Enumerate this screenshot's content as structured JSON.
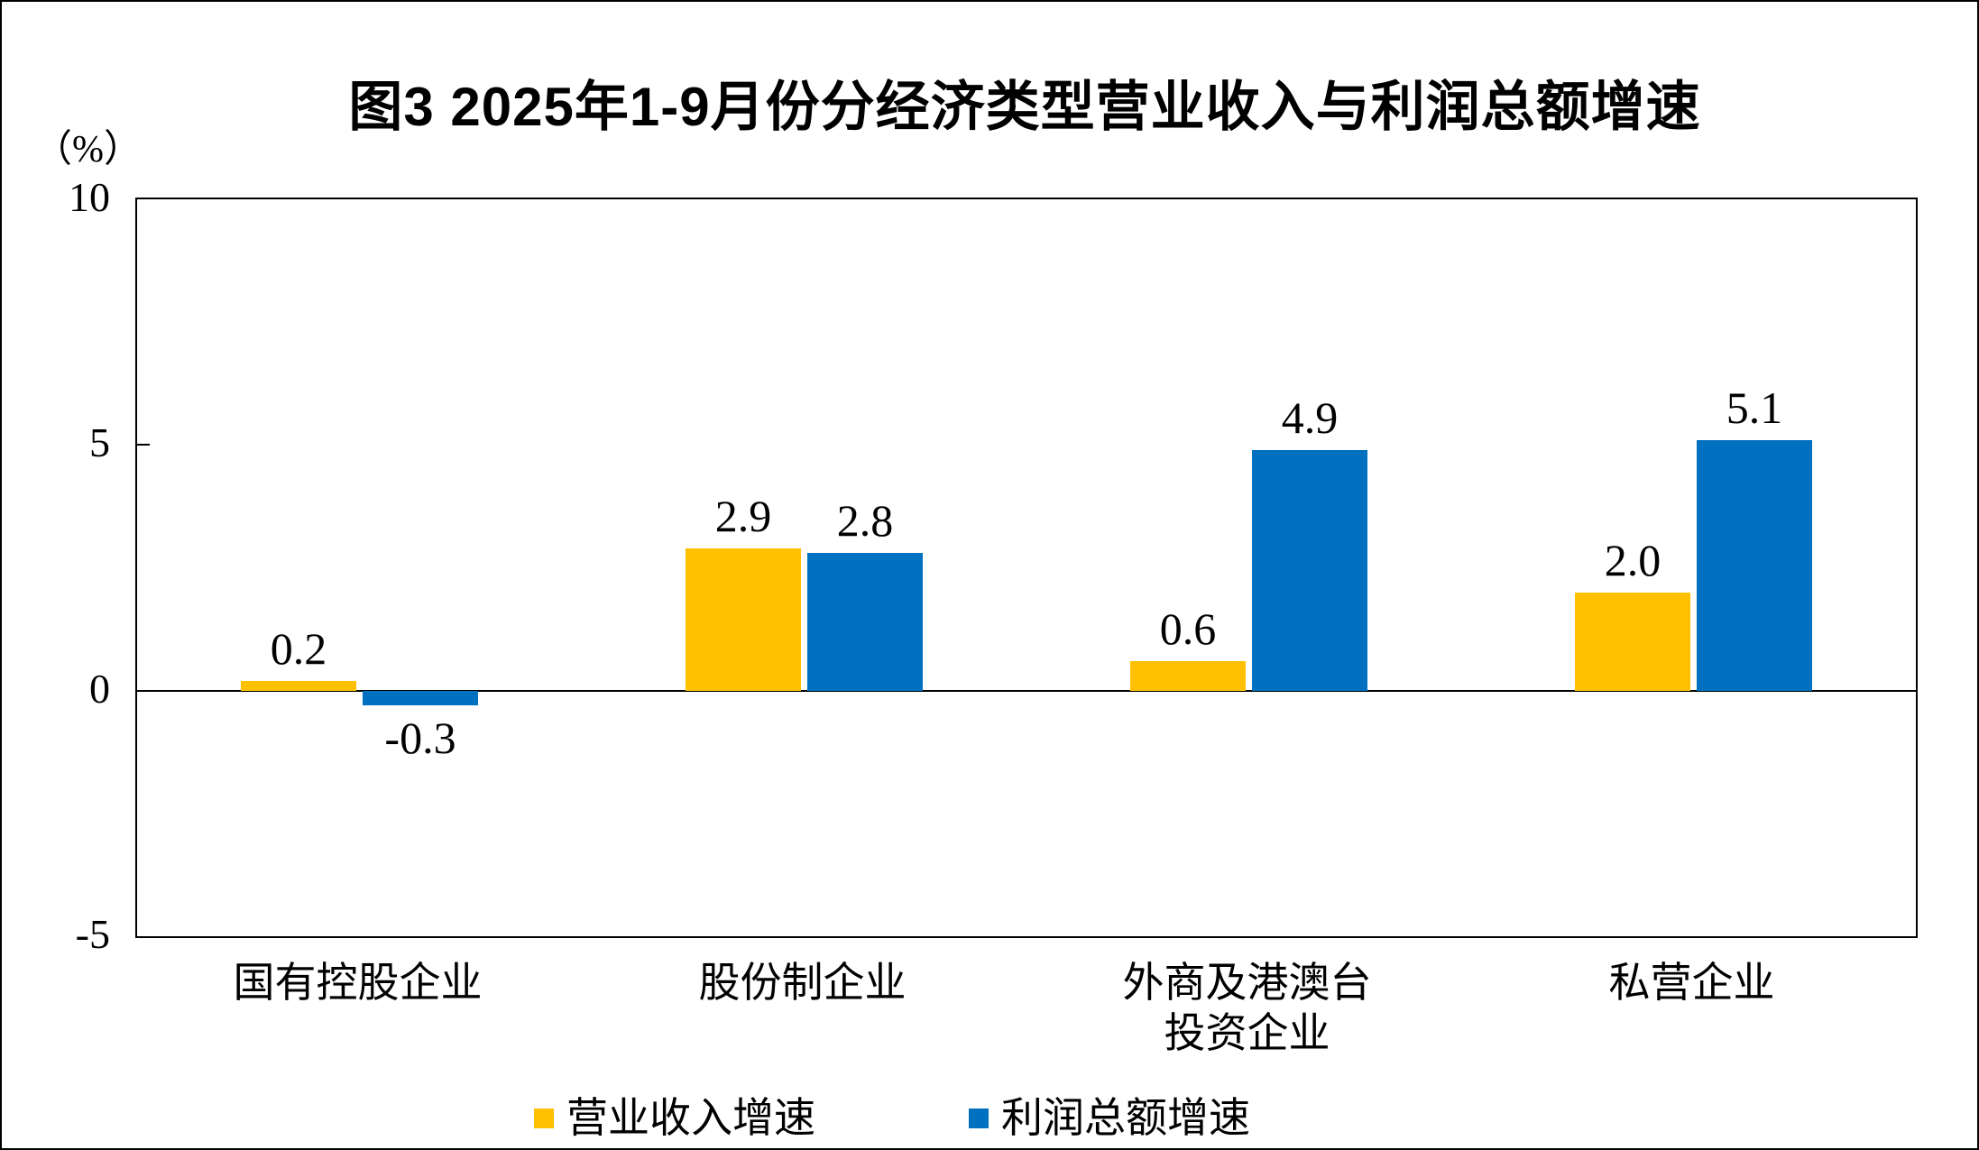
{
  "chart_data": {
    "type": "bar",
    "title": "图3  2025年1-9月份分经济类型营业收入与利润总额增速",
    "unit_label": "（%）",
    "categories": [
      "国有控股企业",
      "股份制企业",
      "外商及港澳台投资企业",
      "私营企业"
    ],
    "categories_lines": [
      [
        "国有控股企业"
      ],
      [
        "股份制企业"
      ],
      [
        "外商及港澳台",
        "投资企业"
      ],
      [
        "私营企业"
      ]
    ],
    "series": [
      {
        "name": "营业收入增速",
        "color": "#FFC000",
        "values": [
          0.2,
          2.9,
          0.6,
          2.0
        ],
        "labels": [
          "0.2",
          "2.9",
          "0.6",
          "2.0"
        ]
      },
      {
        "name": "利润总额增速",
        "color": "#0070C0",
        "values": [
          -0.3,
          2.8,
          4.9,
          5.1
        ],
        "labels": [
          "-0.3",
          "2.8",
          "4.9",
          "5.1"
        ]
      }
    ],
    "ylim": [
      -5,
      10
    ],
    "yticks": [
      10,
      5,
      0,
      -5
    ],
    "ytick_labels": [
      "10",
      "5",
      "0",
      "-5"
    ],
    "grid": false,
    "data_labels_shown": true,
    "legend_position": "bottom",
    "axis_color": "#000000",
    "background_color": "#FFFFFF"
  }
}
